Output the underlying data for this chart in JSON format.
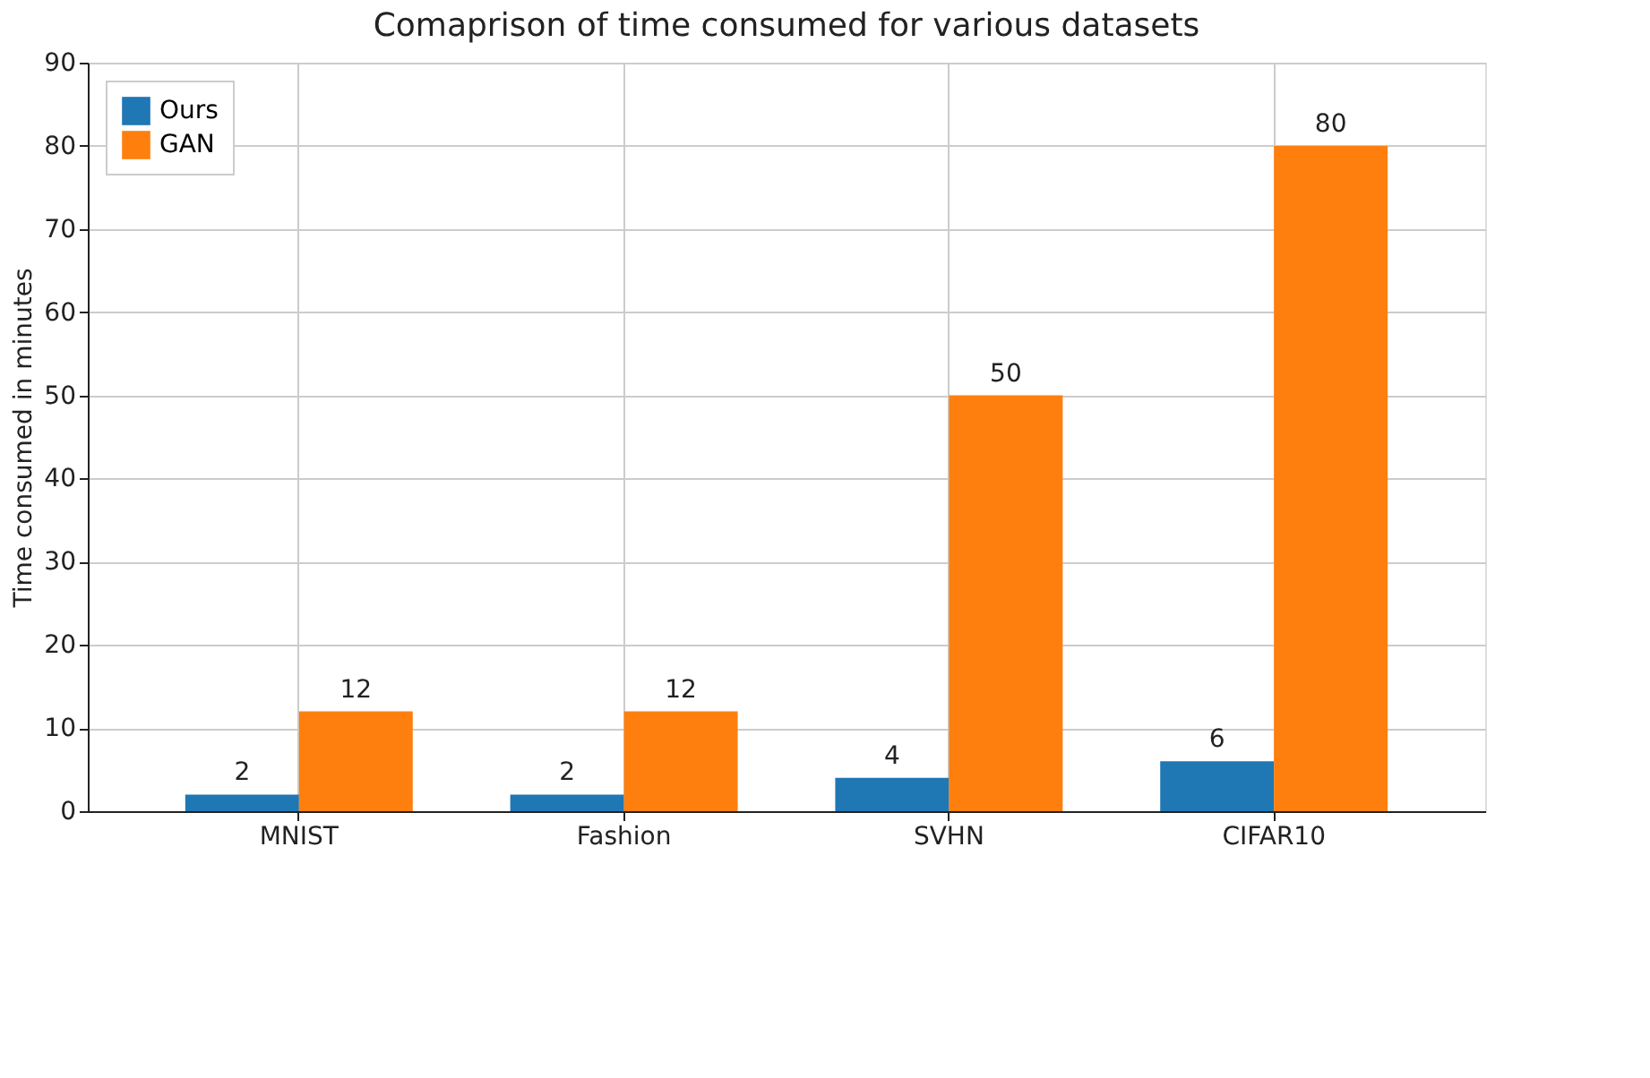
{
  "chart_data": {
    "type": "bar",
    "title": "Comaprison of time consumed for various datasets",
    "ylabel": "Time consumed in minutes",
    "categories": [
      "MNIST",
      "Fashion",
      "SVHN",
      "CIFAR10"
    ],
    "series": [
      {
        "name": "Ours",
        "color": "#1f77b4",
        "values": [
          2,
          2,
          4,
          6
        ]
      },
      {
        "name": "GAN",
        "color": "#ff7f0e",
        "values": [
          12,
          12,
          50,
          80
        ]
      }
    ],
    "ylim": [
      0,
      90
    ],
    "yticks": [
      0,
      10,
      20,
      30,
      40,
      50,
      60,
      70,
      80,
      90
    ],
    "grid": true,
    "legend": "top left",
    "data_labels": true
  }
}
